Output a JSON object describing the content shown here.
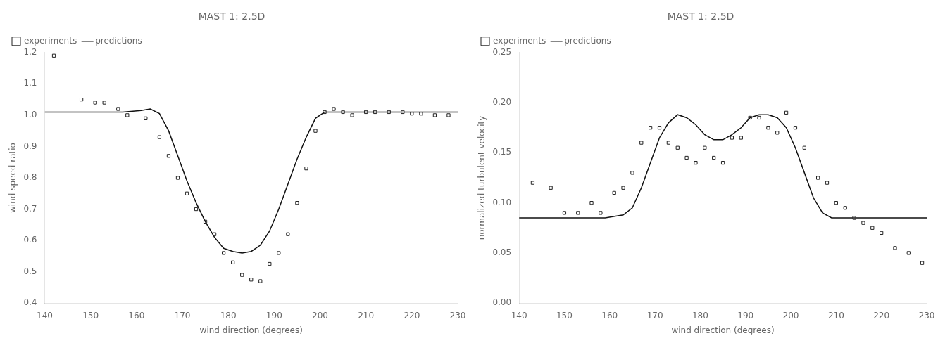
{
  "chart_data": [
    {
      "type": "scatter",
      "title": "MAST 1: 2.5D",
      "x_label": "wind direction (degrees)",
      "y_label": "wind speed ratio",
      "xlim": [
        140,
        230
      ],
      "ylim": [
        0.4,
        1.2
      ],
      "xticks": [
        140,
        150,
        160,
        170,
        180,
        190,
        200,
        210,
        220,
        230
      ],
      "yticks": [
        0.4,
        0.5,
        0.6,
        0.7,
        0.8,
        0.9,
        {
          "value": 1.0,
          "label": "1.0"
        },
        1.1,
        1.2
      ],
      "grid": false,
      "legend": "upper left",
      "series": [
        {
          "name": "experiments",
          "type": "scatter",
          "marker": "square",
          "color": "#222222",
          "x": [
            142,
            148,
            151,
            153,
            156,
            158,
            162,
            165,
            167,
            169,
            171,
            173,
            175,
            177,
            179,
            181,
            183,
            185,
            187,
            189,
            191,
            193,
            195,
            197,
            199,
            201,
            203,
            205,
            207,
            210,
            212,
            215,
            218,
            220,
            222,
            225,
            228
          ],
          "values": [
            1.19,
            1.05,
            1.04,
            1.04,
            1.02,
            1.0,
            0.99,
            0.93,
            0.87,
            0.8,
            0.75,
            0.7,
            0.66,
            0.62,
            0.56,
            0.53,
            0.49,
            0.475,
            0.47,
            0.525,
            0.56,
            0.62,
            0.72,
            0.83,
            0.95,
            1.01,
            1.02,
            1.01,
            1.0,
            1.01,
            1.01,
            1.01,
            1.01,
            1.005,
            1.005,
            1.0,
            1.0
          ]
        },
        {
          "name": "predictions",
          "type": "line",
          "line_style": "solid",
          "color": "#111111",
          "x": [
            140,
            143,
            147,
            152,
            157,
            161,
            163,
            165,
            167,
            169,
            171,
            173,
            175,
            177,
            179,
            181,
            183,
            185,
            187,
            189,
            191,
            193,
            195,
            197,
            199,
            201,
            205,
            210,
            215,
            220,
            225,
            230
          ],
          "values": [
            1.01,
            1.01,
            1.01,
            1.01,
            1.01,
            1.015,
            1.02,
            1.005,
            0.95,
            0.87,
            0.79,
            0.72,
            0.66,
            0.61,
            0.575,
            0.565,
            0.56,
            0.565,
            0.585,
            0.63,
            0.7,
            0.78,
            0.86,
            0.93,
            0.99,
            1.01,
            1.01,
            1.01,
            1.01,
            1.01,
            1.01,
            1.01
          ]
        }
      ]
    },
    {
      "type": "scatter",
      "title": "MAST 1: 2.5D",
      "x_label": "wind direction (degrees)",
      "y_label": "normalized turbulent velocity",
      "xlim": [
        140,
        230
      ],
      "ylim": [
        0.0,
        0.25
      ],
      "xticks": [
        140,
        150,
        160,
        170,
        180,
        190,
        200,
        210,
        220,
        230
      ],
      "yticks": [
        {
          "value": 0,
          "label": "0.00"
        },
        0.05,
        {
          "value": 0.1,
          "label": "0.10"
        },
        0.15,
        {
          "value": 0.2,
          "label": "0.20"
        },
        0.25
      ],
      "grid": false,
      "legend": "upper left",
      "series": [
        {
          "name": "experiments",
          "type": "scatter",
          "marker": "square",
          "color": "#222222",
          "x": [
            143,
            147,
            150,
            153,
            156,
            158,
            161,
            163,
            165,
            167,
            169,
            171,
            173,
            175,
            177,
            179,
            181,
            183,
            185,
            187,
            189,
            191,
            193,
            195,
            197,
            199,
            201,
            203,
            206,
            208,
            210,
            212,
            214,
            216,
            218,
            220,
            223,
            226,
            229
          ],
          "values": [
            0.12,
            0.115,
            0.09,
            0.09,
            0.1,
            0.09,
            0.11,
            0.115,
            0.13,
            0.16,
            0.175,
            0.175,
            0.16,
            0.155,
            0.145,
            0.14,
            0.155,
            0.145,
            0.14,
            0.165,
            0.165,
            0.185,
            0.185,
            0.175,
            0.17,
            0.19,
            0.175,
            0.155,
            0.125,
            0.12,
            0.1,
            0.095,
            0.085,
            0.08,
            0.075,
            0.07,
            0.055,
            0.05,
            0.04
          ]
        },
        {
          "name": "predictions",
          "type": "line",
          "line_style": "solid",
          "color": "#111111",
          "x": [
            140,
            144,
            149,
            154,
            159,
            163,
            165,
            167,
            169,
            171,
            173,
            175,
            177,
            179,
            181,
            183,
            185,
            187,
            189,
            191,
            193,
            195,
            197,
            199,
            201,
            203,
            205,
            207,
            209,
            211,
            215,
            220,
            225,
            230
          ],
          "values": [
            0.085,
            0.085,
            0.085,
            0.085,
            0.085,
            0.088,
            0.095,
            0.115,
            0.14,
            0.165,
            0.18,
            0.188,
            0.185,
            0.178,
            0.168,
            0.163,
            0.163,
            0.168,
            0.175,
            0.185,
            0.188,
            0.188,
            0.185,
            0.175,
            0.155,
            0.13,
            0.105,
            0.09,
            0.085,
            0.085,
            0.085,
            0.085,
            0.085,
            0.085
          ]
        }
      ]
    }
  ]
}
